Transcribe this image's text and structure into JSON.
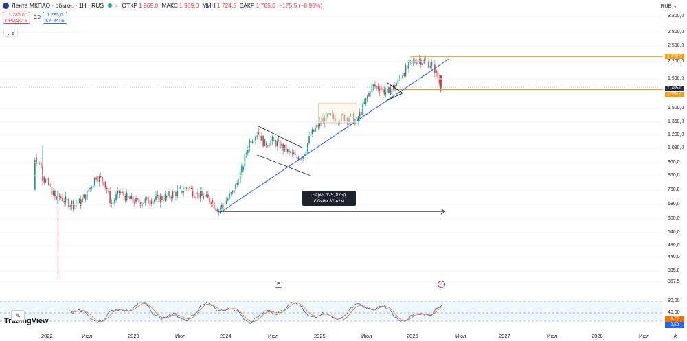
{
  "header": {
    "title": "Лента МКПАО · обыкн. · 1Н · RUS",
    "alt_icon": "≈",
    "open_label": "ОТКР",
    "open_value": "1 969,0",
    "high_label": "МАКС",
    "high_value": "1 969,0",
    "low_label": "МИН",
    "low_value": "1 724,5",
    "close_label": "ЗАКР",
    "close_value": "1 785,0",
    "change": "−175,5 (−8,95%)"
  },
  "trade": {
    "sell_price": "1 785,0",
    "sell_label": "ПРОДАТЬ",
    "spread": "0,0",
    "buy_price": "1 785,0",
    "buy_label": "КУПИТЬ"
  },
  "collapse_label": "⌄ 5",
  "currency": "RUB ⌄",
  "y_axis_labels": [
    "3 200,0",
    "2 800,0",
    "2 500,0",
    "2 200,0",
    "1 900,0",
    "1 785,0",
    "1 750,0",
    "1 500,0",
    "1 350,0",
    "1 200,0",
    "1 080,0",
    "960,0",
    "860,0",
    "760,0",
    "680,0",
    "600,0",
    "540,0",
    "480,0",
    "440,0",
    "395,0",
    "357,5"
  ],
  "price_tags": {
    "resistance": "2 300,0",
    "current": "1 785,0",
    "support": "1 750,0"
  },
  "stoch_labels": {
    "upper": "80,00",
    "lower": "40,00",
    "k_value": "4,77",
    "d_value": "2,59"
  },
  "x_axis_labels": [
    "2022",
    "Июл",
    "2023",
    "Июл",
    "2024",
    "Июл",
    "2025",
    "Июл",
    "2026",
    "Июл",
    "2027",
    "Июл",
    "2028",
    "Июл"
  ],
  "tooltip": {
    "line1": "Бары: 125, 875д",
    "line2": "Объём 37,42M"
  },
  "markers": {
    "earnings": "E",
    "flash": "⚡"
  },
  "branding": "TradingView",
  "chart_data": {
    "type": "candlestick",
    "title": "Лента МКПАО · обыкн. · 1Н · RUS",
    "currency": "RUB",
    "y_scale": "log",
    "ylim": [
      357.5,
      3200
    ],
    "x_range": [
      "2022",
      "2028"
    ],
    "ohlc_last": {
      "open": 1969.0,
      "high": 1969.0,
      "low": 1724.5,
      "close": 1785.0,
      "change": -175.5,
      "change_pct": -8.95
    },
    "close_trend": [
      {
        "date": "2021-12",
        "value": 760
      },
      {
        "date": "2021-12",
        "value": 1000
      },
      {
        "date": "2022-01",
        "value": 920
      },
      {
        "date": "2022-01",
        "value": 850
      },
      {
        "date": "2022-02",
        "value": 780
      },
      {
        "date": "2022-03",
        "value": 680
      },
      {
        "date": "2022-03",
        "value": 730
      },
      {
        "date": "2022-04",
        "value": 700
      },
      {
        "date": "2022-05",
        "value": 680
      },
      {
        "date": "2022-06",
        "value": 690
      },
      {
        "date": "2022-07",
        "value": 760
      },
      {
        "date": "2022-08",
        "value": 860
      },
      {
        "date": "2022-09",
        "value": 820
      },
      {
        "date": "2022-10",
        "value": 680
      },
      {
        "date": "2022-11",
        "value": 750
      },
      {
        "date": "2022-12",
        "value": 720
      },
      {
        "date": "2023-01",
        "value": 690
      },
      {
        "date": "2023-03",
        "value": 700
      },
      {
        "date": "2023-05",
        "value": 720
      },
      {
        "date": "2023-07",
        "value": 760
      },
      {
        "date": "2023-08",
        "value": 780
      },
      {
        "date": "2023-09",
        "value": 740
      },
      {
        "date": "2023-10",
        "value": 720
      },
      {
        "date": "2023-11",
        "value": 700
      },
      {
        "date": "2023-12",
        "value": 650
      },
      {
        "date": "2024-01",
        "value": 700
      },
      {
        "date": "2024-02",
        "value": 760
      },
      {
        "date": "2024-03",
        "value": 900
      },
      {
        "date": "2024-04",
        "value": 1150
      },
      {
        "date": "2024-05",
        "value": 1230
      },
      {
        "date": "2024-06",
        "value": 1120
      },
      {
        "date": "2024-07",
        "value": 1150
      },
      {
        "date": "2024-08",
        "value": 1100
      },
      {
        "date": "2024-09",
        "value": 1050
      },
      {
        "date": "2024-10",
        "value": 1000
      },
      {
        "date": "2024-11",
        "value": 1020
      },
      {
        "date": "2024-12",
        "value": 1200
      },
      {
        "date": "2025-01",
        "value": 1300
      },
      {
        "date": "2025-02",
        "value": 1400
      },
      {
        "date": "2025-03",
        "value": 1380
      },
      {
        "date": "2025-05",
        "value": 1400
      },
      {
        "date": "2025-06",
        "value": 1350
      },
      {
        "date": "2025-07",
        "value": 1550
      },
      {
        "date": "2025-08",
        "value": 1800
      },
      {
        "date": "2025-09",
        "value": 1780
      },
      {
        "date": "2025-10",
        "value": 1700
      },
      {
        "date": "2025-11",
        "value": 1800
      },
      {
        "date": "2025-12",
        "value": 2000
      },
      {
        "date": "2026-01",
        "value": 2150
      },
      {
        "date": "2026-02",
        "value": 2250
      },
      {
        "date": "2026-03",
        "value": 2200
      },
      {
        "date": "2026-04",
        "value": 2150
      },
      {
        "date": "2026-05",
        "value": 1785
      }
    ],
    "horizontal_levels": [
      2300,
      1750
    ],
    "trendline": {
      "from": {
        "date": "2023-12",
        "value": 630
      },
      "to": {
        "date": "2026-05",
        "value": 2250
      }
    },
    "measure_arrow": {
      "bars": 125,
      "days": 875,
      "volume": "37,42M"
    },
    "stochastic": {
      "upper": 80,
      "lower": 40,
      "k": 4.77,
      "d": 2.59
    }
  }
}
